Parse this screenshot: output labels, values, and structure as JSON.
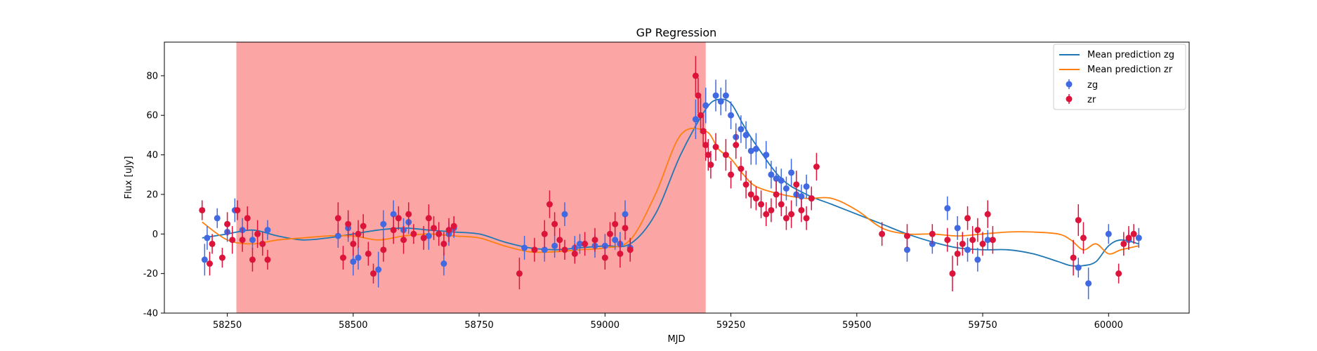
{
  "chart_data": {
    "type": "scatter",
    "title": "GP Regression",
    "xlabel": "MJD",
    "ylabel": "Flux [uJy]",
    "xlim": [
      58125,
      60160
    ],
    "ylim": [
      -40,
      97
    ],
    "xticks": [
      58250,
      58500,
      58750,
      59000,
      59250,
      59500,
      59750,
      60000
    ],
    "yticks": [
      -40,
      -20,
      0,
      20,
      40,
      60,
      80
    ],
    "grid": false,
    "legend_position": "top-right",
    "shaded_region": {
      "x_start": 58268,
      "x_end": 59200,
      "color": "#fca5a5"
    },
    "legend": {
      "line_zg": "Mean prediction zg",
      "line_zr": "Mean prediction zr",
      "points_zg": "zg",
      "points_zr": "zr"
    },
    "colors": {
      "line_zg": "#1f77b4",
      "line_zr": "#ff7f0e",
      "points_zg": "#4169e1",
      "points_zr": "#dc143c"
    },
    "series": [
      {
        "name": "Mean prediction zg",
        "kind": "line",
        "x": [
          58200,
          58250,
          58300,
          58350,
          58400,
          58450,
          58500,
          58550,
          58600,
          58650,
          58700,
          58750,
          58800,
          58850,
          58900,
          58950,
          59000,
          59050,
          59100,
          59150,
          59200,
          59225,
          59250,
          59275,
          59300,
          59350,
          59400,
          59450,
          59500,
          59550,
          59600,
          59650,
          59700,
          59750,
          59800,
          59850,
          59900,
          59925,
          59950,
          59975,
          60000,
          60025,
          60060
        ],
        "y": [
          -2,
          0,
          2,
          -1,
          -3,
          -2,
          0,
          2,
          3,
          2,
          1,
          0,
          -4,
          -7,
          -8,
          -7,
          -6,
          -5,
          10,
          40,
          63,
          68,
          66,
          55,
          45,
          28,
          20,
          15,
          10,
          5,
          0,
          -4,
          -7,
          -8,
          -8,
          -10,
          -14,
          -16,
          -16,
          -14,
          -6,
          -3,
          -5
        ]
      },
      {
        "name": "Mean prediction zr",
        "kind": "line",
        "x": [
          58200,
          58250,
          58300,
          58350,
          58400,
          58450,
          58500,
          58550,
          58600,
          58650,
          58700,
          58750,
          58800,
          58850,
          58900,
          58950,
          59000,
          59050,
          59100,
          59150,
          59200,
          59225,
          59250,
          59275,
          59300,
          59350,
          59400,
          59450,
          59500,
          59550,
          59600,
          59650,
          59700,
          59750,
          59800,
          59850,
          59900,
          59925,
          59950,
          59975,
          60000,
          60025,
          60060
        ],
        "y": [
          6,
          -3,
          -5,
          -3,
          -2,
          -1,
          -1,
          -3,
          -1,
          0,
          -1,
          -2,
          -6,
          -9,
          -9,
          -8,
          -7,
          -3,
          20,
          50,
          52,
          43,
          38,
          30,
          24,
          20,
          18,
          18,
          12,
          3,
          0,
          0,
          -1,
          0,
          1,
          1,
          0,
          -3,
          -8,
          -5,
          -10,
          -8,
          -6
        ]
      },
      {
        "name": "zg",
        "kind": "points",
        "x": [
          58205,
          58210,
          58230,
          58250,
          58265,
          58280,
          58300,
          58330,
          58470,
          58490,
          58500,
          58510,
          58550,
          58560,
          58580,
          58600,
          58610,
          58650,
          58680,
          58690,
          58700,
          58840,
          58880,
          58900,
          58920,
          58940,
          58950,
          58980,
          59000,
          59020,
          59030,
          59040,
          59050,
          59180,
          59200,
          59220,
          59230,
          59240,
          59250,
          59260,
          59270,
          59280,
          59290,
          59300,
          59320,
          59330,
          59340,
          59350,
          59360,
          59370,
          59380,
          59390,
          59400,
          59410,
          59600,
          59650,
          59680,
          59700,
          59720,
          59740,
          59760,
          59940,
          59960,
          60000,
          60040,
          60060
        ],
        "y": [
          -13,
          -2,
          8,
          1,
          12,
          2,
          -3,
          2,
          -1,
          3,
          -14,
          -12,
          -18,
          5,
          10,
          2,
          6,
          -1,
          -15,
          0,
          3,
          -7,
          -8,
          -6,
          10,
          -7,
          -5,
          -6,
          -6,
          -3,
          -5,
          10,
          -7,
          58,
          65,
          70,
          67,
          70,
          60,
          49,
          53,
          50,
          42,
          43,
          40,
          30,
          28,
          27,
          23,
          31,
          20,
          19,
          24,
          18,
          -8,
          -5,
          13,
          3,
          -8,
          -13,
          -3,
          -17,
          -25,
          0,
          -3,
          -2
        ],
        "err": [
          8,
          6,
          5,
          5,
          6,
          6,
          5,
          5,
          6,
          7,
          7,
          6,
          9,
          7,
          7,
          6,
          6,
          7,
          6,
          6,
          5,
          6,
          6,
          6,
          6,
          6,
          5,
          6,
          6,
          5,
          6,
          7,
          5,
          10,
          9,
          8,
          7,
          8,
          7,
          7,
          7,
          7,
          7,
          8,
          7,
          7,
          6,
          6,
          6,
          7,
          6,
          6,
          6,
          5,
          6,
          5,
          6,
          6,
          6,
          6,
          5,
          5,
          8,
          5,
          5,
          5
        ]
      },
      {
        "name": "zr",
        "kind": "points",
        "x": [
          58200,
          58215,
          58220,
          58240,
          58250,
          58260,
          58270,
          58280,
          58290,
          58300,
          58310,
          58320,
          58330,
          58470,
          58480,
          58490,
          58500,
          58510,
          58520,
          58530,
          58540,
          58560,
          58580,
          58590,
          58600,
          58610,
          58620,
          58640,
          58650,
          58660,
          58670,
          58680,
          58690,
          58700,
          58830,
          58860,
          58880,
          58890,
          58900,
          58910,
          58920,
          58940,
          58960,
          58980,
          59000,
          59010,
          59020,
          59030,
          59040,
          59050,
          59180,
          59185,
          59190,
          59195,
          59200,
          59205,
          59210,
          59220,
          59240,
          59250,
          59260,
          59270,
          59280,
          59290,
          59300,
          59310,
          59320,
          59330,
          59340,
          59350,
          59360,
          59370,
          59380,
          59390,
          59400,
          59410,
          59420,
          59550,
          59600,
          59650,
          59680,
          59690,
          59700,
          59710,
          59720,
          59730,
          59740,
          59750,
          59760,
          59770,
          59930,
          59940,
          59950,
          60020,
          60030,
          60040,
          60050
        ],
        "y": [
          12,
          -15,
          -5,
          -12,
          5,
          -3,
          12,
          -3,
          8,
          -13,
          0,
          -5,
          -13,
          8,
          -12,
          5,
          -5,
          0,
          4,
          -10,
          -20,
          -8,
          2,
          8,
          -3,
          10,
          0,
          -2,
          8,
          3,
          0,
          -5,
          2,
          4,
          -20,
          -8,
          0,
          15,
          5,
          -3,
          -8,
          -10,
          -5,
          -3,
          -12,
          0,
          5,
          -10,
          3,
          -8,
          80,
          70,
          60,
          52,
          45,
          40,
          35,
          44,
          40,
          30,
          45,
          33,
          25,
          20,
          18,
          15,
          10,
          12,
          20,
          15,
          8,
          10,
          25,
          12,
          8,
          18,
          34,
          0,
          -1,
          0,
          -3,
          -20,
          -10,
          -5,
          8,
          -3,
          2,
          -5,
          10,
          -3,
          -12,
          7,
          -2,
          -20,
          -5,
          -2,
          0
        ],
        "err": [
          5,
          6,
          5,
          5,
          6,
          7,
          5,
          6,
          6,
          6,
          7,
          6,
          5,
          8,
          6,
          7,
          6,
          7,
          6,
          6,
          5,
          6,
          7,
          6,
          7,
          6,
          5,
          6,
          7,
          6,
          6,
          6,
          6,
          5,
          8,
          6,
          7,
          7,
          6,
          6,
          5,
          5,
          6,
          6,
          6,
          6,
          6,
          7,
          6,
          6,
          10,
          9,
          9,
          8,
          8,
          8,
          7,
          7,
          8,
          7,
          7,
          6,
          7,
          7,
          6,
          7,
          6,
          6,
          7,
          6,
          6,
          7,
          7,
          6,
          6,
          6,
          7,
          6,
          6,
          5,
          6,
          9,
          6,
          6,
          6,
          7,
          6,
          6,
          7,
          7,
          9,
          8,
          8,
          5,
          6,
          6,
          5
        ]
      }
    ]
  }
}
